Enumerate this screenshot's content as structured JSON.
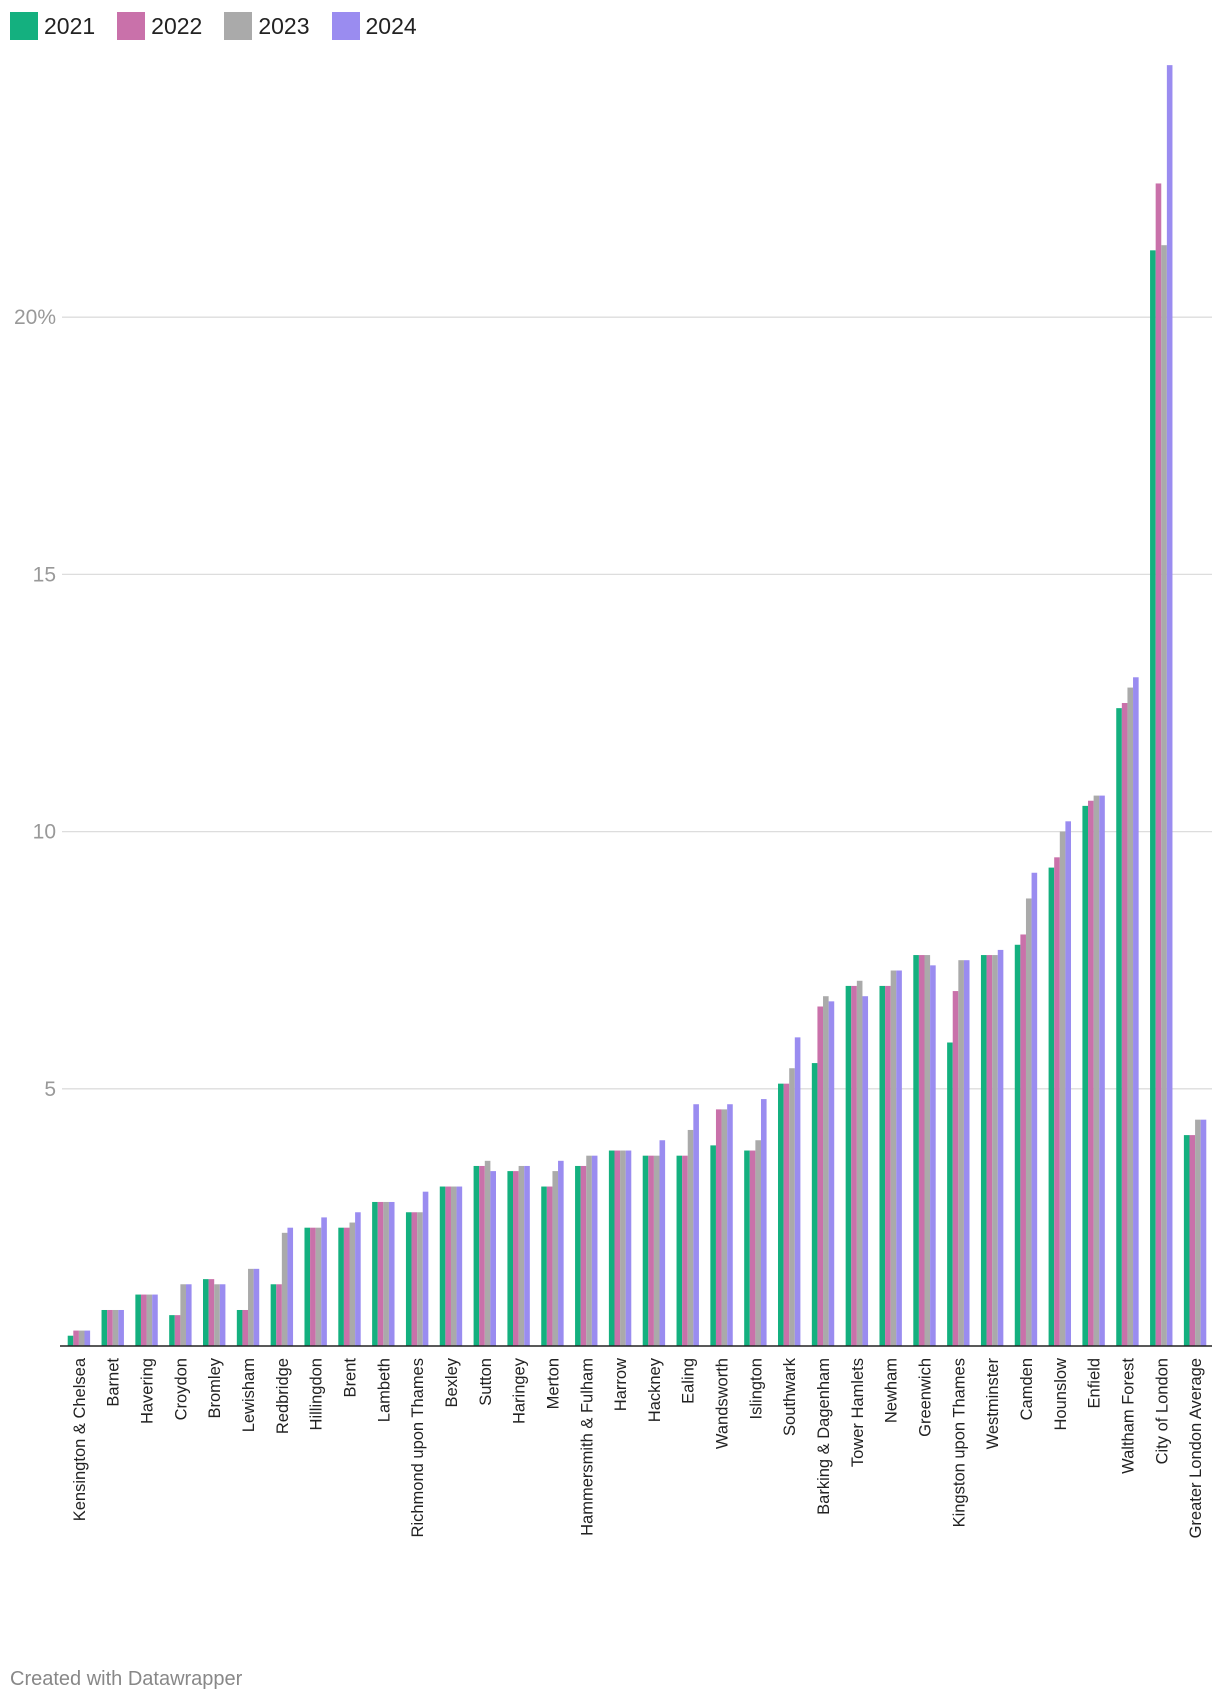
{
  "chart_data": {
    "type": "bar",
    "title": "",
    "xlabel": "",
    "ylabel": "",
    "ylim": [
      0,
      25
    ],
    "y_ticks": [
      {
        "value": 5,
        "label": "5"
      },
      {
        "value": 10,
        "label": "10"
      },
      {
        "value": 15,
        "label": "15"
      },
      {
        "value": 20,
        "label": "20%"
      }
    ],
    "legend_position": "top-left",
    "categories": [
      "Kensington & Chelsea",
      "Barnet",
      "Havering",
      "Croydon",
      "Bromley",
      "Lewisham",
      "Redbridge",
      "Hillingdon",
      "Brent",
      "Lambeth",
      "Richmond upon Thames",
      "Bexley",
      "Sutton",
      "Haringey",
      "Merton",
      "Hammersmith & Fulham",
      "Harrow",
      "Hackney",
      "Ealing",
      "Wandsworth",
      "Islington",
      "Southwark",
      "Barking & Dagenham",
      "Tower Hamlets",
      "Newham",
      "Greenwich",
      "Kingston upon Thames",
      "Westminster",
      "Camden",
      "Hounslow",
      "Enfield",
      "Waltham Forest",
      "City of London",
      "Greater London Average"
    ],
    "series": [
      {
        "name": "2021",
        "color": "#14b07f",
        "values": [
          0.2,
          0.7,
          1.0,
          0.6,
          1.3,
          0.7,
          1.2,
          2.3,
          2.3,
          2.8,
          2.6,
          3.1,
          3.5,
          3.4,
          3.1,
          3.5,
          3.8,
          3.7,
          3.7,
          3.9,
          3.8,
          5.1,
          5.5,
          7.0,
          7.0,
          7.6,
          5.9,
          7.6,
          7.8,
          9.3,
          10.5,
          12.4,
          21.3,
          4.1
        ]
      },
      {
        "name": "2022",
        "color": "#c971aa",
        "values": [
          0.3,
          0.7,
          1.0,
          0.6,
          1.3,
          0.7,
          1.2,
          2.3,
          2.3,
          2.8,
          2.6,
          3.1,
          3.5,
          3.4,
          3.1,
          3.5,
          3.8,
          3.7,
          3.7,
          4.6,
          3.8,
          5.1,
          6.6,
          7.0,
          7.0,
          7.6,
          6.9,
          7.6,
          8.0,
          9.5,
          10.6,
          12.5,
          22.6,
          4.1
        ]
      },
      {
        "name": "2023",
        "color": "#aaaaaa",
        "values": [
          0.3,
          0.7,
          1.0,
          1.2,
          1.2,
          1.5,
          2.2,
          2.3,
          2.4,
          2.8,
          2.6,
          3.1,
          3.6,
          3.5,
          3.4,
          3.7,
          3.8,
          3.7,
          4.2,
          4.6,
          4.0,
          5.4,
          6.8,
          7.1,
          7.3,
          7.6,
          7.5,
          7.6,
          8.7,
          10.0,
          10.7,
          12.8,
          21.4,
          4.4
        ]
      },
      {
        "name": "2024",
        "color": "#9a8cf0",
        "values": [
          0.3,
          0.7,
          1.0,
          1.2,
          1.2,
          1.5,
          2.3,
          2.5,
          2.6,
          2.8,
          3.0,
          3.1,
          3.4,
          3.5,
          3.6,
          3.7,
          3.8,
          4.0,
          4.7,
          4.7,
          4.8,
          6.0,
          6.7,
          6.8,
          7.3,
          7.4,
          7.5,
          7.7,
          9.2,
          10.2,
          10.7,
          13.0,
          24.9,
          4.4
        ]
      }
    ]
  },
  "footer": {
    "credit": "Created with Datawrapper"
  }
}
